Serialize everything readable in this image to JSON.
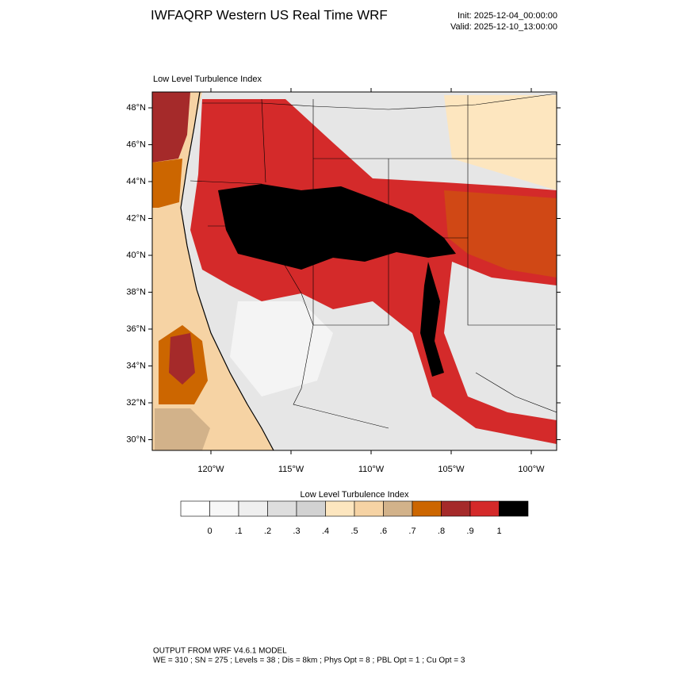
{
  "header": {
    "title": "IWFAQRP Western US Real Time WRF",
    "init": "Init: 2025-12-04_00:00:00",
    "valid": "Valid: 2025-12-10_13:00:00"
  },
  "map": {
    "title": "Low Level Turbulence Index",
    "lat_labels": [
      "48°N",
      "46°N",
      "44°N",
      "42°N",
      "40°N",
      "38°N",
      "36°N",
      "34°N",
      "32°N",
      "30°N"
    ],
    "lon_labels": [
      "120°W",
      "115°W",
      "110°W",
      "105°W",
      "100°W"
    ]
  },
  "colorbar": {
    "title": "Low Level Turbulence Index",
    "colors": [
      "#ffffff",
      "#f7f7f7",
      "#efefef",
      "#dedede",
      "#d2d2d2",
      "#fde6bf",
      "#f6d3a4",
      "#d2b28a",
      "#cc6600",
      "#a52a2a",
      "#d42a2a",
      "#000000"
    ],
    "labels": [
      "0",
      ".1",
      ".2",
      ".3",
      ".4",
      ".5",
      ".6",
      ".7",
      ".8",
      ".9",
      "1"
    ]
  },
  "footer": {
    "line1": "OUTPUT FROM WRF V4.6.1 MODEL",
    "line2": "WE = 310 ; SN = 275 ; Levels = 38 ; Dis = 8km ; Phys Opt = 8 ; PBL Opt = 1 ; Cu Opt = 3"
  }
}
